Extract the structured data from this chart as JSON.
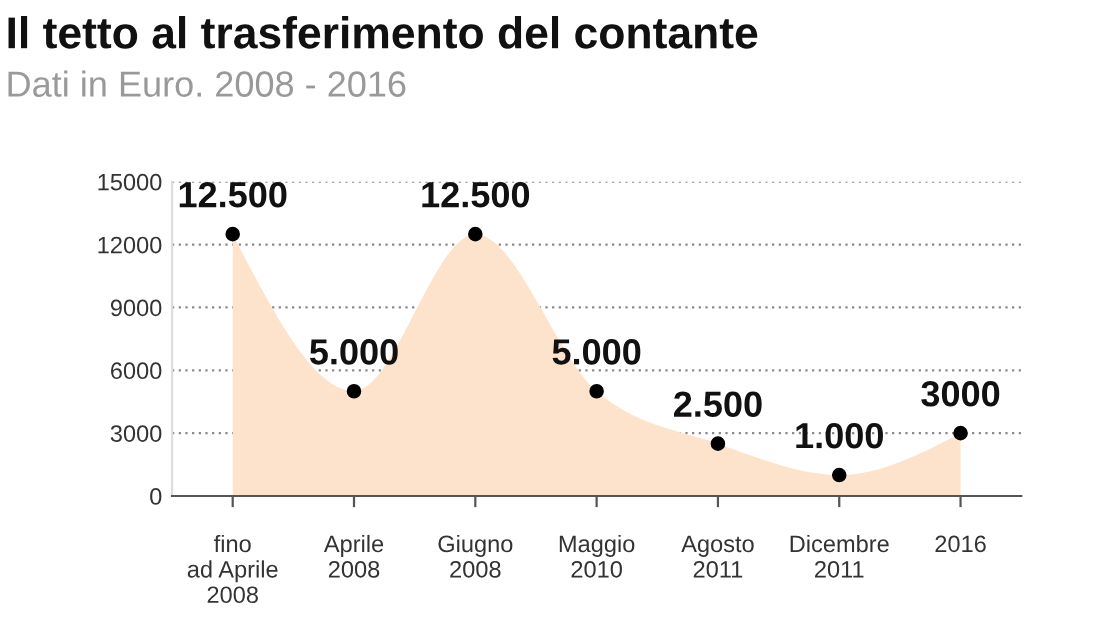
{
  "chart_data": {
    "type": "area",
    "title": "Il tetto al trasferimento del contante",
    "subtitle": "Dati in Euro. 2008 - 2016",
    "categories": [
      "fino\nad Aprile\n2008",
      "Aprile\n2008",
      "Giugno\n2008",
      "Maggio\n2010",
      "Agosto\n2011",
      "Dicembre\n2011",
      "2016"
    ],
    "values": [
      12500,
      5000,
      12500,
      5000,
      2500,
      1000,
      3000
    ],
    "value_labels": [
      "12.500",
      "5.000",
      "12.500",
      "5.000",
      "2.500",
      "1.000",
      "3000"
    ],
    "color": "#fde3cc",
    "marker": "circle",
    "ylim": [
      0,
      15000
    ],
    "yticks": [
      0,
      3000,
      6000,
      9000,
      12000,
      15000
    ],
    "grid": "y"
  }
}
